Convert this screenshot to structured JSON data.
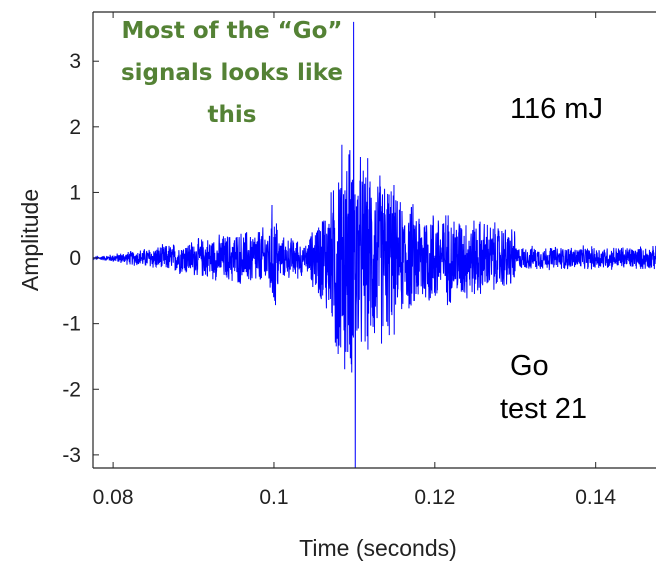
{
  "chart_data": {
    "type": "line",
    "title": "",
    "xlabel": "Time (seconds)",
    "ylabel": "Amplitude",
    "xlim": [
      0.0775,
      0.1475
    ],
    "ylim": [
      -3.2,
      3.75
    ],
    "x_ticks": [
      0.08,
      0.1,
      0.12,
      0.14
    ],
    "x_tick_labels": [
      "0.08",
      "0.1",
      "0.12",
      "0.14"
    ],
    "y_ticks": [
      3,
      2,
      1,
      0,
      -1,
      -2,
      -3
    ],
    "y_tick_labels": [
      "3",
      "2",
      "1",
      "0",
      "-1",
      "-2",
      "-3"
    ],
    "grid": false,
    "series": [
      {
        "color": "#0000ff",
        "segments": [
          {
            "x_start": 0.0775,
            "x_end": 0.0995,
            "amplitude_envelope": 0.01
          },
          {
            "x_start": 0.0995,
            "x_end": 0.1005,
            "amplitude_envelope": 0.9
          },
          {
            "x_start": 0.1005,
            "x_end": 0.1035,
            "amplitude_envelope": 0.35
          },
          {
            "x_start": 0.1035,
            "x_end": 0.1075,
            "amplitude_envelope": 0.12
          },
          {
            "x_start": 0.1075,
            "x_end": 0.11,
            "amplitude_envelope": 2.0
          },
          {
            "x_start": 0.11,
            "x_end": 0.115,
            "amplitude_envelope": 1.8
          },
          {
            "x_start": 0.115,
            "x_end": 0.13,
            "amplitude_envelope": 1.0
          },
          {
            "x_start": 0.13,
            "x_end": 0.1475,
            "amplitude_envelope": 0.2
          }
        ],
        "peak_max": {
          "x": 0.1099,
          "y": 3.6
        },
        "peak_min": {
          "x": 0.1101,
          "y": -3.2
        }
      }
    ],
    "annotations": {
      "energy": "116 mJ",
      "label_line1": "Go",
      "label_line2": "test 21"
    }
  },
  "callout": {
    "line1": "Most of the “Go”",
    "line2": "signals looks like",
    "line3": "this",
    "color": "#548235"
  }
}
